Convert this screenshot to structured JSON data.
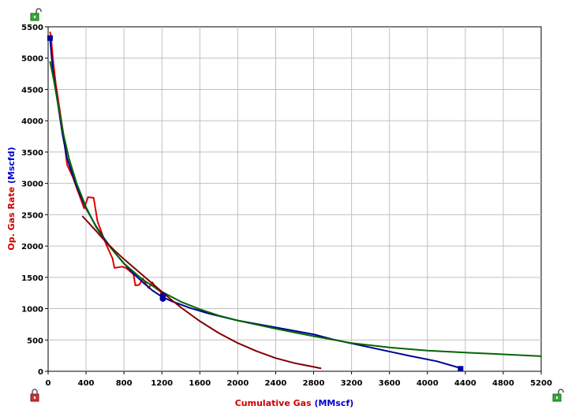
{
  "chart_data": {
    "type": "line",
    "xlabel_parts": [
      {
        "text": "Cumulative Gas ",
        "color": "#cc0000"
      },
      {
        "text": "(MMscf)",
        "color": "#0000cc"
      }
    ],
    "ylabel_parts": [
      {
        "text": "Op. Gas Rate ",
        "color": "#cc0000"
      },
      {
        "text": "(Mscfd)",
        "color": "#0000cc"
      }
    ],
    "xlim": [
      0,
      5200
    ],
    "ylim": [
      0,
      5500
    ],
    "x_ticks": [
      0,
      400,
      800,
      1200,
      1600,
      2000,
      2400,
      2800,
      3200,
      3600,
      4000,
      4400,
      4800,
      5200
    ],
    "y_ticks": [
      0,
      500,
      1000,
      1500,
      2000,
      2500,
      3000,
      3500,
      4000,
      4500,
      5000,
      5500
    ],
    "grid": true,
    "colors": {
      "grid": "#c0c0c0",
      "background": "#ffffff",
      "lock_green": "#33aa33",
      "lock_red": "#cc3333"
    },
    "series": [
      {
        "color": "#e00000",
        "width": 2,
        "kind": "actual",
        "points": [
          [
            20,
            5420
          ],
          [
            30,
            5350
          ],
          [
            50,
            5000
          ],
          [
            80,
            4600
          ],
          [
            120,
            4200
          ],
          [
            160,
            3800
          ],
          [
            200,
            3300
          ],
          [
            260,
            3100
          ],
          [
            320,
            2850
          ],
          [
            380,
            2600
          ],
          [
            420,
            2780
          ],
          [
            480,
            2770
          ],
          [
            520,
            2400
          ],
          [
            580,
            2150
          ],
          [
            620,
            2000
          ],
          [
            680,
            1800
          ],
          [
            700,
            1650
          ],
          [
            780,
            1670
          ],
          [
            820,
            1650
          ],
          [
            900,
            1550
          ],
          [
            920,
            1370
          ],
          [
            960,
            1380
          ],
          [
            1000,
            1480
          ],
          [
            1020,
            1420
          ],
          [
            1060,
            1330
          ],
          [
            1100,
            1420
          ],
          [
            1140,
            1320
          ],
          [
            1180,
            1280
          ],
          [
            1210,
            1210
          ]
        ]
      },
      {
        "color": "#000099",
        "width": 2,
        "kind": "forecast",
        "points": [
          [
            20,
            5320
          ],
          [
            50,
            4800
          ],
          [
            100,
            4300
          ],
          [
            150,
            3800
          ],
          [
            200,
            3400
          ],
          [
            300,
            2950
          ],
          [
            400,
            2600
          ],
          [
            500,
            2330
          ],
          [
            600,
            2100
          ],
          [
            700,
            1900
          ],
          [
            800,
            1720
          ],
          [
            900,
            1560
          ],
          [
            1000,
            1420
          ],
          [
            1100,
            1290
          ],
          [
            1200,
            1190
          ],
          [
            1300,
            1120
          ],
          [
            1500,
            1010
          ],
          [
            1700,
            920
          ],
          [
            2000,
            810
          ],
          [
            2400,
            700
          ],
          [
            2800,
            590
          ],
          [
            3000,
            510
          ],
          [
            3400,
            380
          ],
          [
            3800,
            250
          ],
          [
            4100,
            160
          ],
          [
            4350,
            50
          ]
        ]
      },
      {
        "color": "#006600",
        "width": 2,
        "kind": "forecast",
        "points": [
          [
            20,
            4950
          ],
          [
            60,
            4650
          ],
          [
            100,
            4300
          ],
          [
            160,
            3800
          ],
          [
            220,
            3400
          ],
          [
            300,
            3000
          ],
          [
            400,
            2620
          ],
          [
            500,
            2320
          ],
          [
            600,
            2080
          ],
          [
            800,
            1720
          ],
          [
            1000,
            1460
          ],
          [
            1200,
            1270
          ],
          [
            1400,
            1110
          ],
          [
            1600,
            990
          ],
          [
            1800,
            890
          ],
          [
            2000,
            810
          ],
          [
            2400,
            680
          ],
          [
            2800,
            560
          ],
          [
            3200,
            450
          ],
          [
            3600,
            380
          ],
          [
            4000,
            330
          ],
          [
            4400,
            300
          ],
          [
            4800,
            270
          ],
          [
            5200,
            240
          ]
        ]
      },
      {
        "color": "#800000",
        "width": 2,
        "kind": "forecast",
        "points": [
          [
            360,
            2480
          ],
          [
            500,
            2250
          ],
          [
            600,
            2080
          ],
          [
            700,
            1930
          ],
          [
            800,
            1790
          ],
          [
            900,
            1660
          ],
          [
            1000,
            1530
          ],
          [
            1100,
            1400
          ],
          [
            1200,
            1270
          ],
          [
            1300,
            1140
          ],
          [
            1400,
            1020
          ],
          [
            1600,
            800
          ],
          [
            1800,
            610
          ],
          [
            2000,
            450
          ],
          [
            2200,
            320
          ],
          [
            2400,
            210
          ],
          [
            2600,
            130
          ],
          [
            2800,
            70
          ],
          [
            2880,
            45
          ]
        ]
      }
    ],
    "markers": [
      {
        "x": 20,
        "y": 5320,
        "shape": "square",
        "color": "#000099"
      },
      {
        "x": 4350,
        "y": 40,
        "shape": "square",
        "color": "#000099"
      },
      {
        "x": 1210,
        "y": 1210,
        "shape": "circle",
        "color": "#000099"
      },
      {
        "x": 1210,
        "y": 1160,
        "shape": "circle",
        "color": "#000099"
      }
    ]
  }
}
